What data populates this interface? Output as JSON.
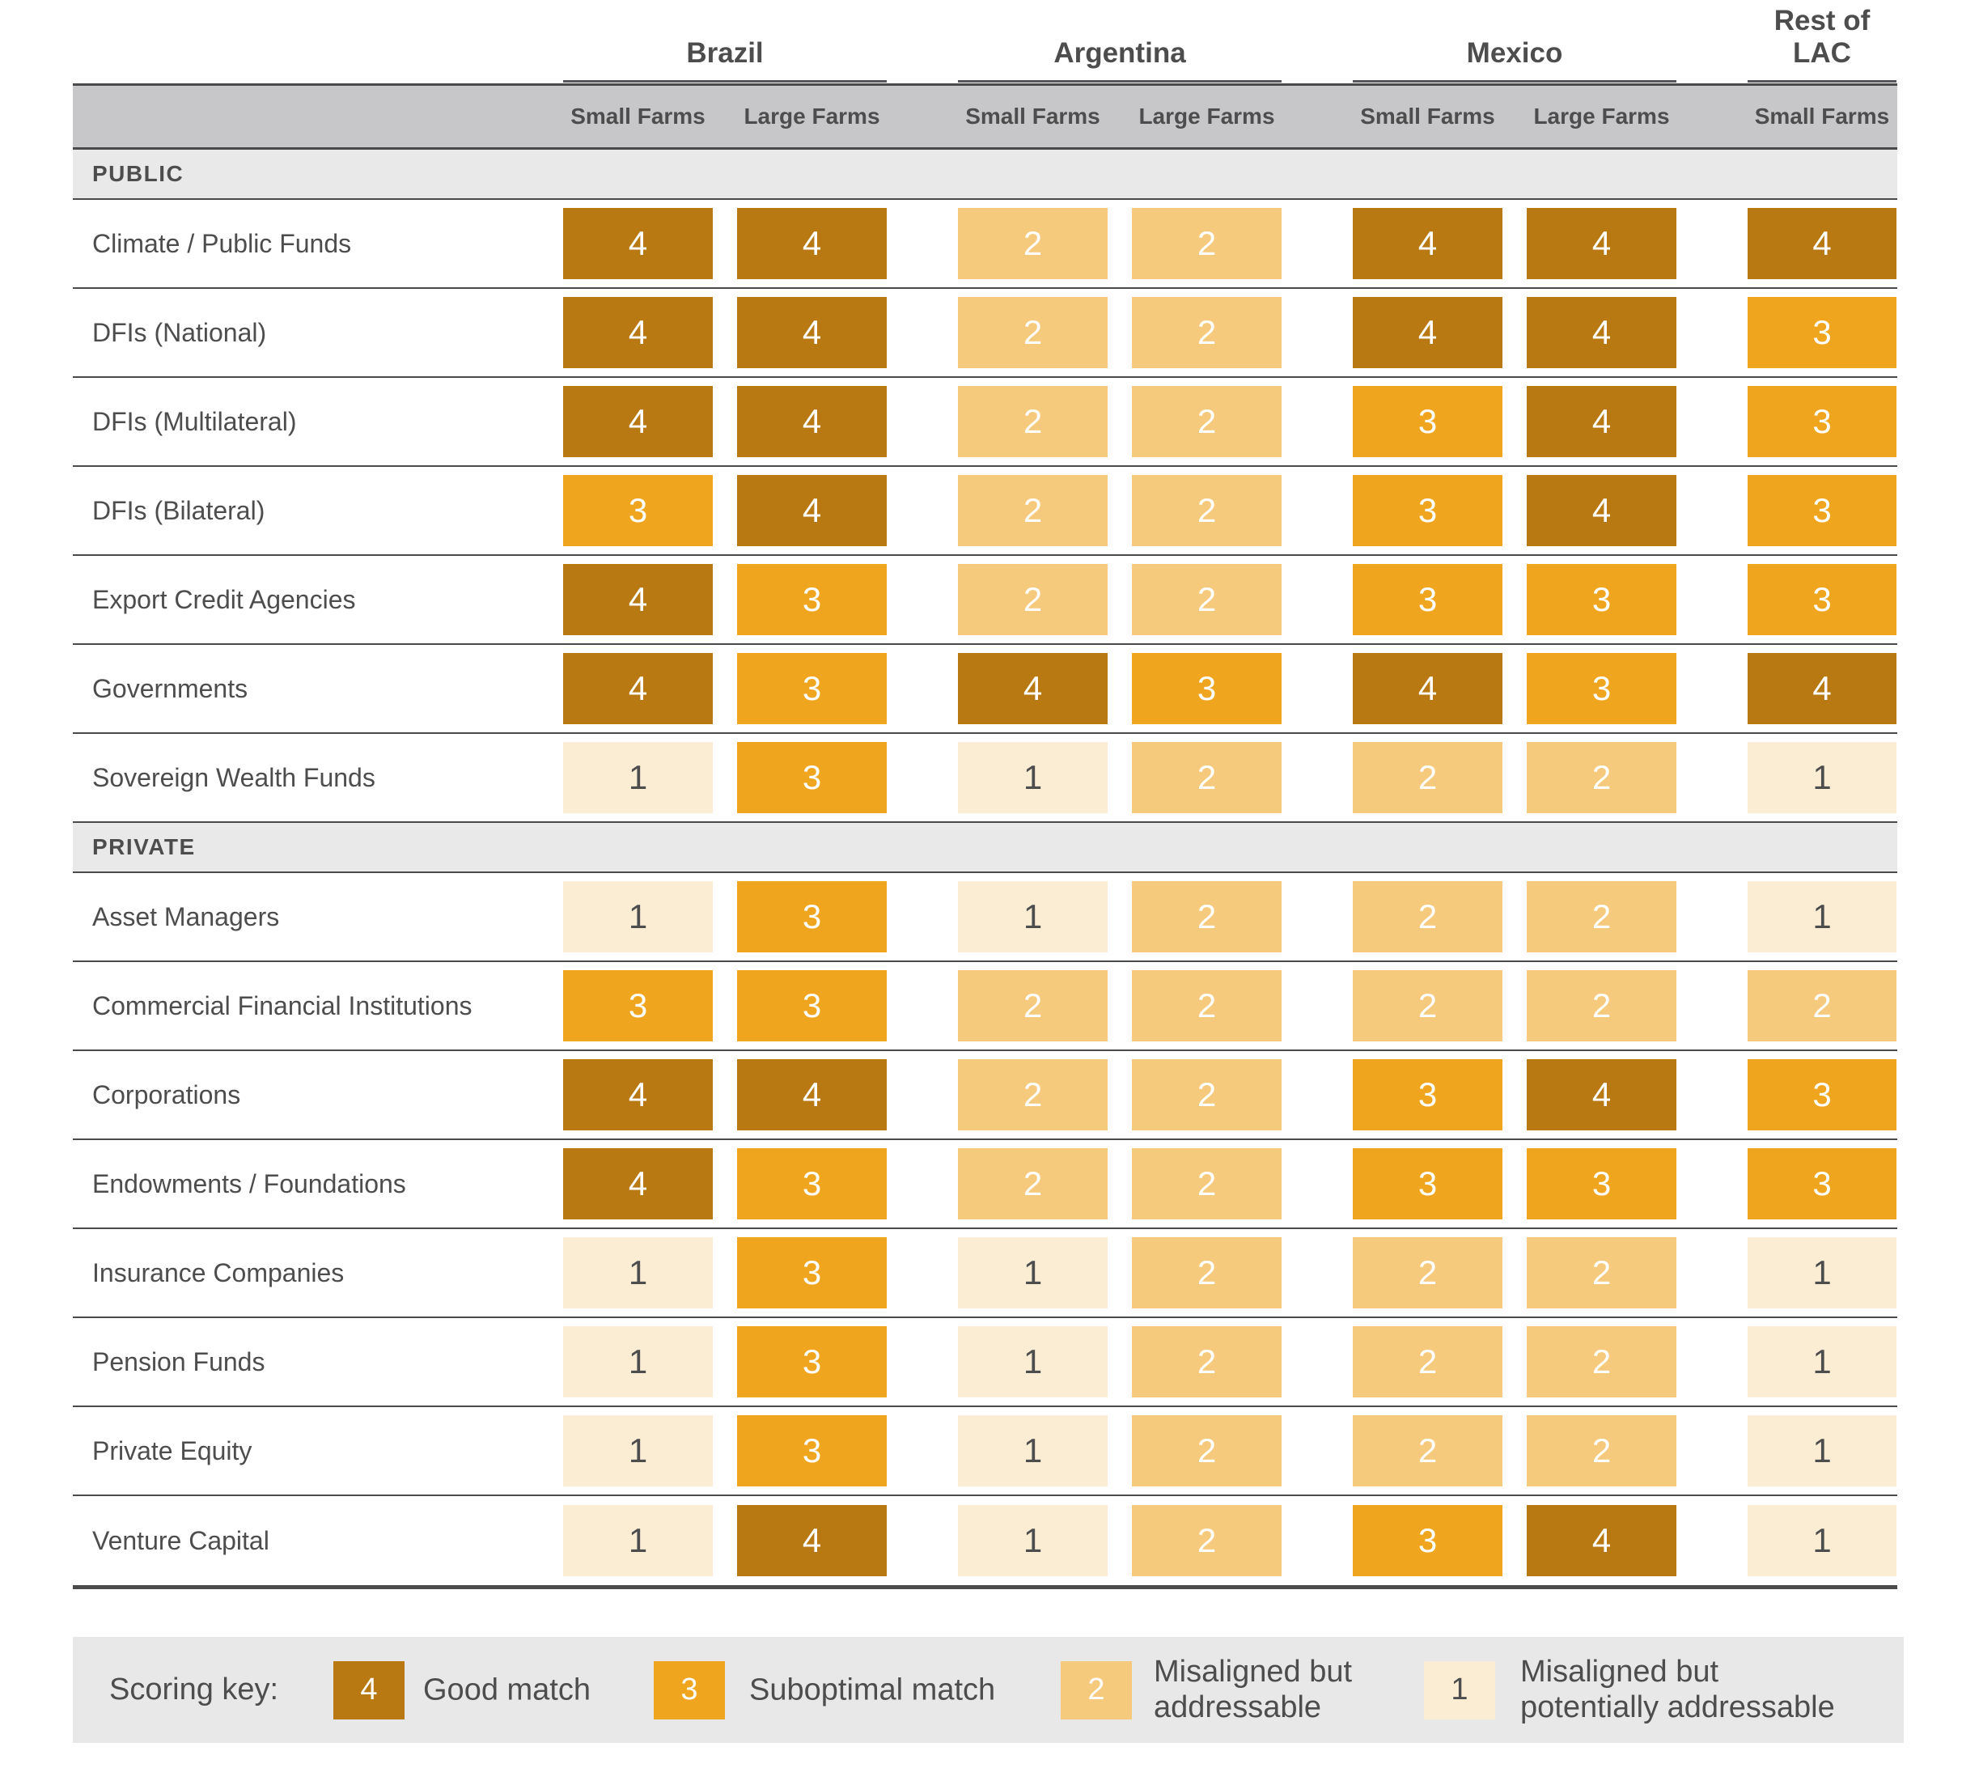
{
  "chart_data": {
    "type": "heatmap",
    "title": "",
    "column_groups": [
      {
        "label": "Brazil",
        "subcolumns": [
          "Small Farms",
          "Large Farms"
        ]
      },
      {
        "label": "Argentina",
        "subcolumns": [
          "Small Farms",
          "Large Farms"
        ]
      },
      {
        "label": "Mexico",
        "subcolumns": [
          "Small Farms",
          "Large Farms"
        ]
      },
      {
        "label": "Rest of LAC",
        "subcolumns": [
          "Small Farms"
        ]
      }
    ],
    "sections": [
      {
        "label": "PUBLIC",
        "rows": [
          {
            "label": "Climate / Public Funds",
            "values": [
              4,
              4,
              2,
              2,
              4,
              4,
              4
            ]
          },
          {
            "label": "DFIs (National)",
            "values": [
              4,
              4,
              2,
              2,
              4,
              4,
              3
            ]
          },
          {
            "label": "DFIs (Multilateral)",
            "values": [
              4,
              4,
              2,
              2,
              3,
              4,
              3
            ]
          },
          {
            "label": "DFIs (Bilateral)",
            "values": [
              3,
              4,
              2,
              2,
              3,
              4,
              3
            ]
          },
          {
            "label": "Export Credit Agencies",
            "values": [
              4,
              3,
              2,
              2,
              3,
              3,
              3
            ]
          },
          {
            "label": "Governments",
            "values": [
              4,
              3,
              4,
              3,
              4,
              3,
              4
            ]
          },
          {
            "label": "Sovereign Wealth Funds",
            "values": [
              1,
              3,
              1,
              2,
              2,
              2,
              1
            ]
          }
        ]
      },
      {
        "label": "PRIVATE",
        "rows": [
          {
            "label": "Asset Managers",
            "values": [
              1,
              3,
              1,
              2,
              2,
              2,
              1
            ]
          },
          {
            "label": "Commercial Financial Institutions",
            "values": [
              3,
              3,
              2,
              2,
              2,
              2,
              2
            ]
          },
          {
            "label": "Corporations",
            "values": [
              4,
              4,
              2,
              2,
              3,
              4,
              3
            ]
          },
          {
            "label": "Endowments / Foundations",
            "values": [
              4,
              3,
              2,
              2,
              3,
              3,
              3
            ]
          },
          {
            "label": "Insurance Companies",
            "values": [
              1,
              3,
              1,
              2,
              2,
              2,
              1
            ]
          },
          {
            "label": "Pension Funds",
            "values": [
              1,
              3,
              1,
              2,
              2,
              2,
              1
            ]
          },
          {
            "label": "Private Equity",
            "values": [
              1,
              3,
              1,
              2,
              2,
              2,
              1
            ]
          },
          {
            "label": "Venture Capital",
            "values": [
              1,
              4,
              1,
              2,
              3,
              4,
              1
            ]
          }
        ]
      }
    ],
    "score_scale": {
      "4": "Good match",
      "3": "Suboptimal match",
      "2": "Misaligned but addressable",
      "1": "Misaligned but potentially addressable"
    },
    "score_colors": {
      "4": "#B87912",
      "3": "#F0A51F",
      "2": "#F6CA7D",
      "1": "#FAEDD3"
    }
  },
  "legend": {
    "title": "Scoring key:",
    "items": [
      {
        "score": "4",
        "label": "Good match"
      },
      {
        "score": "3",
        "label": "Suboptimal match"
      },
      {
        "score": "2",
        "label": "Misaligned but\naddressable"
      },
      {
        "score": "1",
        "label": "Misaligned but\npotentially addressable"
      }
    ]
  },
  "styles": {
    "text_color": "#4D4D4D",
    "line_color": "#4A4A4A",
    "subheader_band_color": "#C7C7CA",
    "section_band_color": "#E9E9E9",
    "legend_band_color": "#E8E8E8"
  }
}
